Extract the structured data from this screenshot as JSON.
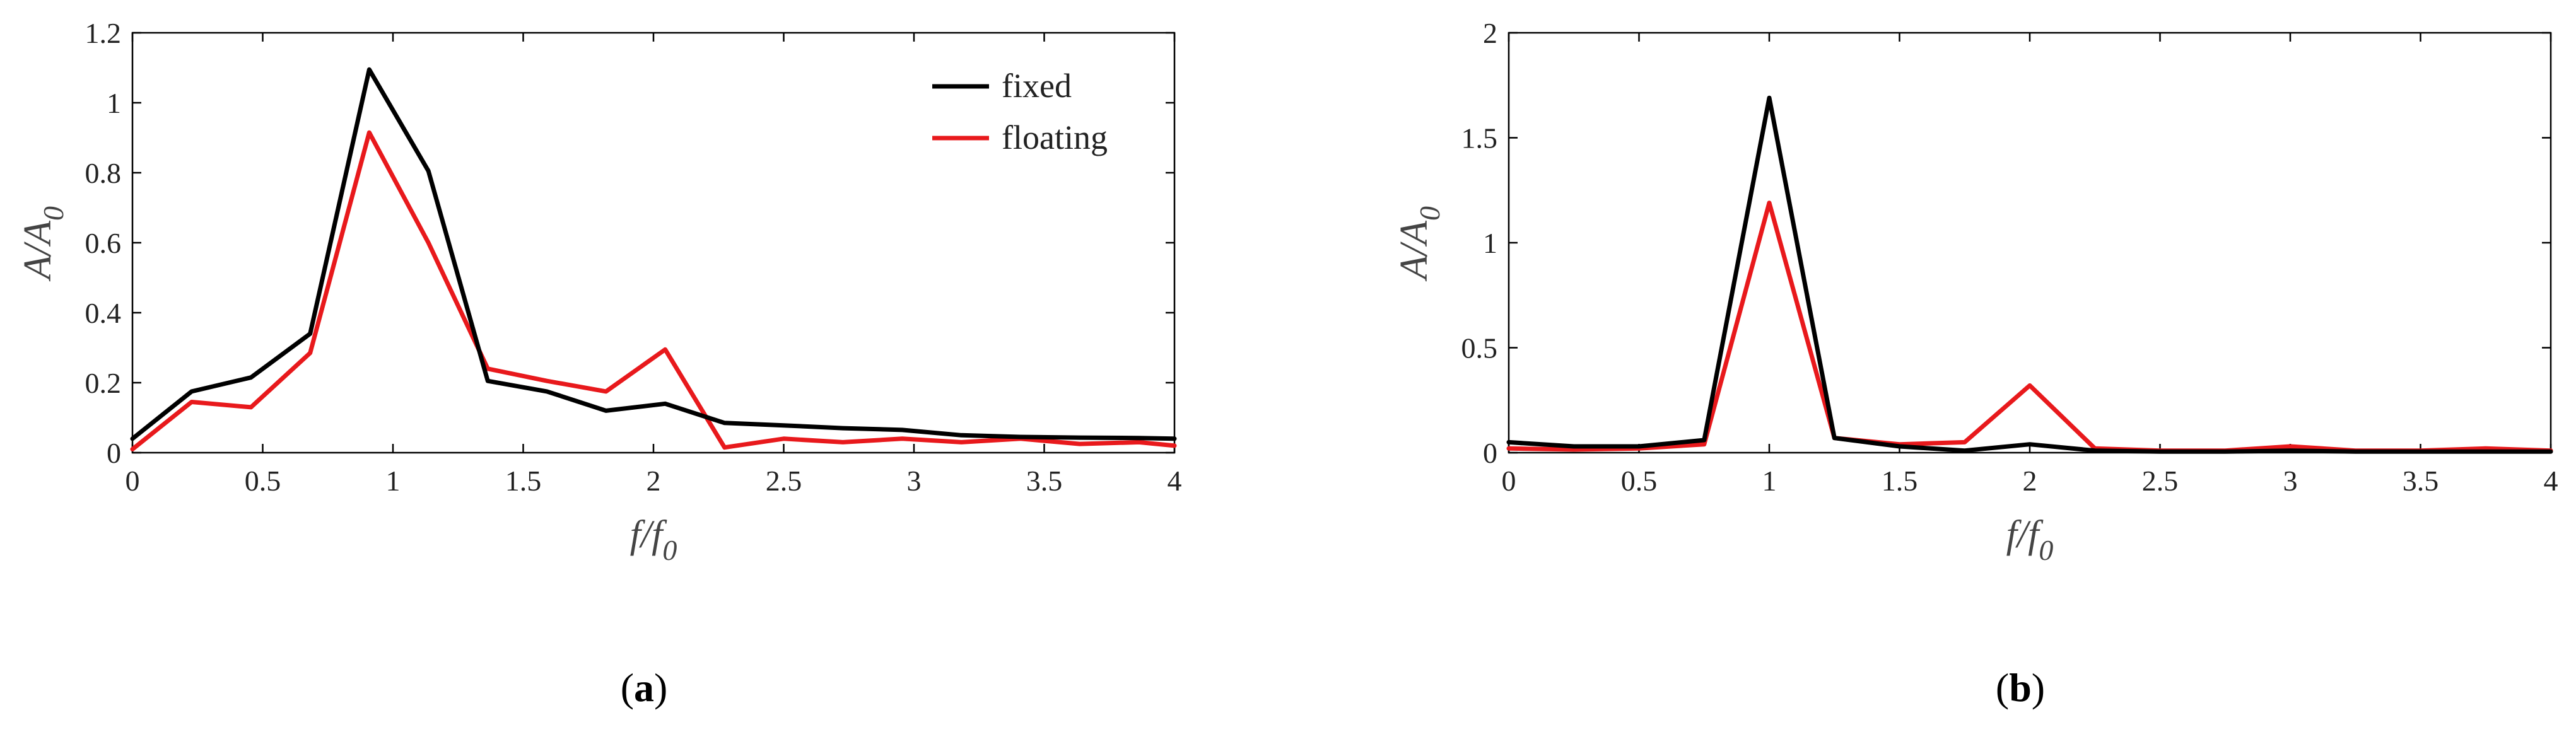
{
  "chart_data": [
    {
      "type": "line",
      "panel_label": "(a)",
      "panel_letter": "a",
      "xlabel": "f/f",
      "xlabel_sub": "0",
      "ylabel": "A/A",
      "ylabel_sub": "0",
      "xlim": [
        0,
        4
      ],
      "ylim": [
        0,
        1.2
      ],
      "xticks": [
        0,
        0.5,
        1,
        1.5,
        2,
        2.5,
        3,
        3.5,
        4
      ],
      "xtick_labels": [
        "0",
        "0.5",
        "1",
        "1.5",
        "2",
        "2.5",
        "3",
        "3.5",
        "4"
      ],
      "yticks": [
        0,
        0.2,
        0.4,
        0.6,
        0.8,
        1,
        1.2
      ],
      "ytick_labels": [
        "0",
        "0.2",
        "0.4",
        "0.6",
        "0.8",
        "1",
        "1.2"
      ],
      "grid": false,
      "legend": {
        "placement": "top-right",
        "entries": [
          "fixed",
          "floating"
        ]
      },
      "series": [
        {
          "name": "fixed",
          "color": "#000000",
          "x": [
            0,
            0.227,
            0.455,
            0.682,
            0.909,
            1.136,
            1.364,
            1.591,
            1.818,
            2.045,
            2.273,
            2.5,
            2.727,
            2.955,
            3.182,
            3.409,
            3.636,
            3.864,
            4.0
          ],
          "y": [
            0.04,
            0.175,
            0.215,
            0.34,
            1.095,
            0.805,
            0.205,
            0.175,
            0.12,
            0.14,
            0.085,
            0.078,
            0.07,
            0.065,
            0.05,
            0.045,
            0.043,
            0.042,
            0.04
          ]
        },
        {
          "name": "floating",
          "color": "#e8191c",
          "x": [
            0,
            0.227,
            0.455,
            0.682,
            0.909,
            1.136,
            1.364,
            1.591,
            1.818,
            2.045,
            2.273,
            2.5,
            2.727,
            2.955,
            3.182,
            3.409,
            3.636,
            3.864,
            4.0
          ],
          "y": [
            0.01,
            0.145,
            0.13,
            0.285,
            0.915,
            0.6,
            0.24,
            0.205,
            0.175,
            0.295,
            0.015,
            0.04,
            0.03,
            0.04,
            0.03,
            0.04,
            0.025,
            0.03,
            0.02
          ]
        }
      ]
    },
    {
      "type": "line",
      "panel_label": "(b)",
      "panel_letter": "b",
      "xlabel": "f/f",
      "xlabel_sub": "0",
      "ylabel": "A/A",
      "ylabel_sub": "0",
      "xlim": [
        0,
        4
      ],
      "ylim": [
        0,
        2
      ],
      "xticks": [
        0,
        0.5,
        1,
        1.5,
        2,
        2.5,
        3,
        3.5,
        4
      ],
      "xtick_labels": [
        "0",
        "0.5",
        "1",
        "1.5",
        "2",
        "2.5",
        "3",
        "3.5",
        "4"
      ],
      "yticks": [
        0,
        0.5,
        1,
        1.5,
        2
      ],
      "ytick_labels": [
        "0",
        "0.5",
        "1",
        "1.5",
        "2"
      ],
      "grid": false,
      "series": [
        {
          "color": "#000000",
          "x": [
            0,
            0.25,
            0.5,
            0.75,
            1.0,
            1.25,
            1.5,
            1.75,
            2.0,
            2.25,
            2.5,
            2.75,
            3.0,
            3.25,
            3.5,
            3.75,
            4.0
          ],
          "y": [
            0.05,
            0.03,
            0.03,
            0.06,
            1.69,
            0.07,
            0.03,
            0.01,
            0.04,
            0.01,
            0.005,
            0.005,
            0.01,
            0.005,
            0.005,
            0.005,
            0.005
          ]
        },
        {
          "color": "#e8191c",
          "x": [
            0,
            0.25,
            0.5,
            0.75,
            1.0,
            1.25,
            1.5,
            1.75,
            2.0,
            2.25,
            2.5,
            2.75,
            3.0,
            3.25,
            3.5,
            3.75,
            4.0
          ],
          "y": [
            0.02,
            0.015,
            0.02,
            0.04,
            1.19,
            0.07,
            0.04,
            0.05,
            0.32,
            0.02,
            0.01,
            0.01,
            0.03,
            0.01,
            0.01,
            0.02,
            0.01
          ]
        }
      ]
    }
  ]
}
